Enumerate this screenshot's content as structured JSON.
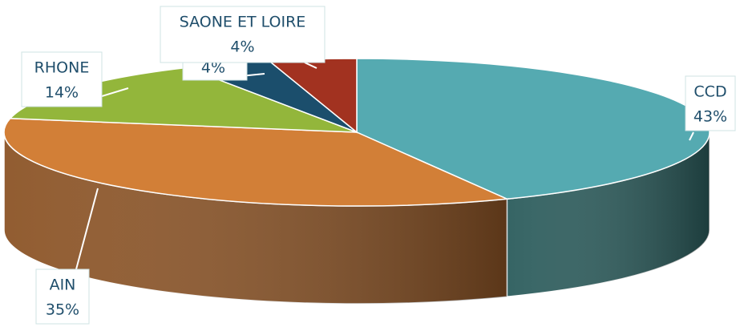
{
  "chart_data": {
    "type": "pie3d",
    "categories": [
      "CCD",
      "AIN",
      "RHONE",
      null,
      "SAONE ET LOIRE"
    ],
    "values": [
      43,
      35,
      14,
      4,
      4
    ],
    "value_labels": [
      "43%",
      "35%",
      "14%",
      "4%",
      "4%"
    ],
    "colors": [
      "#55aab1",
      "#d27f37",
      "#93b63b",
      "#1b4e6c",
      "#a23220"
    ],
    "side_colors": [
      "#2b5c5c",
      "#8c5426",
      "#6a8a2a",
      "#12364c",
      "#6e2216"
    ]
  }
}
